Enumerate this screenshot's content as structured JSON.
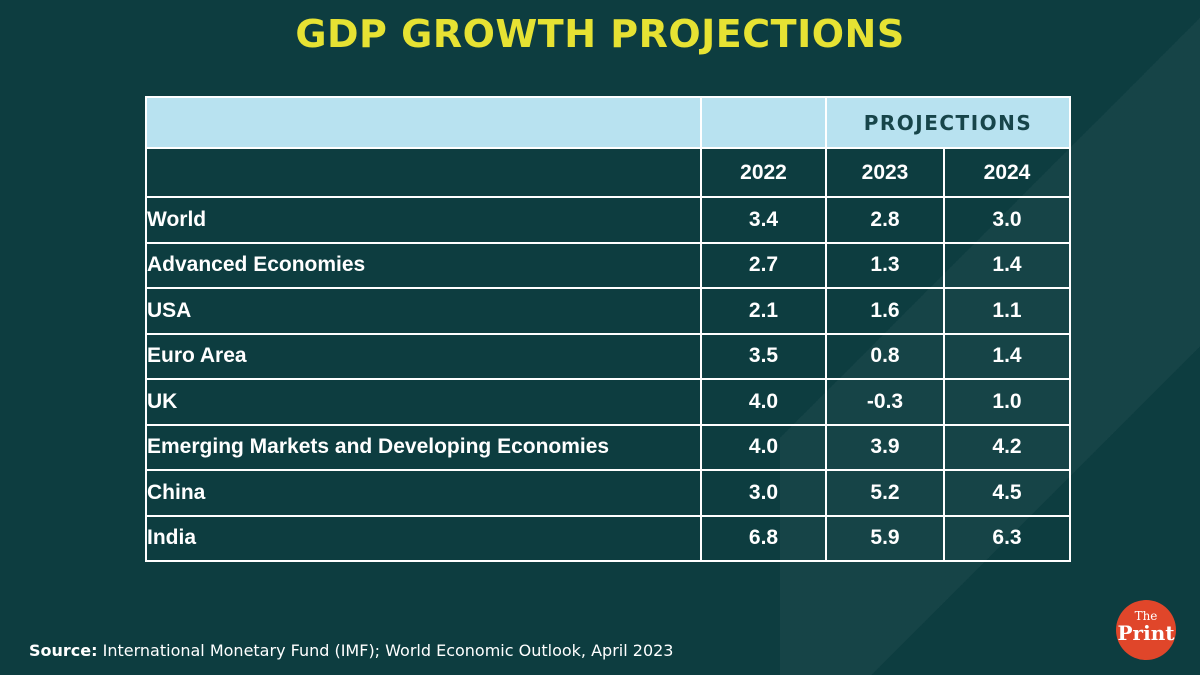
{
  "title": "GDP GROWTH PROJECTIONS",
  "colors": {
    "background": "#0d3d40",
    "title": "#e6e233",
    "header_fill": "#b8e2f0",
    "header_text": "#17454a",
    "logo": "#e0462a"
  },
  "chart_data": {
    "type": "table",
    "title": "GDP GROWTH PROJECTIONS",
    "group_header": "PROJECTIONS",
    "columns": [
      "2022",
      "2023",
      "2024"
    ],
    "rows": [
      {
        "label": "World",
        "level": 0,
        "values": [
          "3.4",
          "2.8",
          "3.0"
        ]
      },
      {
        "label": "Advanced Economies",
        "level": 1,
        "values": [
          "2.7",
          "1.3",
          "1.4"
        ]
      },
      {
        "label": "USA",
        "level": 2,
        "values": [
          "2.1",
          "1.6",
          "1.1"
        ]
      },
      {
        "label": "Euro Area",
        "level": 2,
        "values": [
          "3.5",
          "0.8",
          "1.4"
        ]
      },
      {
        "label": "UK",
        "level": 2,
        "values": [
          "4.0",
          "-0.3",
          "1.0"
        ]
      },
      {
        "label": "Emerging Markets and Developing Economies",
        "level": 1,
        "values": [
          "4.0",
          "3.9",
          "4.2"
        ]
      },
      {
        "label": "China",
        "level": 2,
        "values": [
          "3.0",
          "5.2",
          "4.5"
        ]
      },
      {
        "label": "India",
        "level": 2,
        "values": [
          "6.8",
          "5.9",
          "6.3"
        ]
      }
    ]
  },
  "source": {
    "label": "Source:",
    "text": "International Monetary Fund (IMF); World Economic Outlook, April 2023"
  },
  "logo": {
    "top": "The",
    "bottom": "Print"
  }
}
